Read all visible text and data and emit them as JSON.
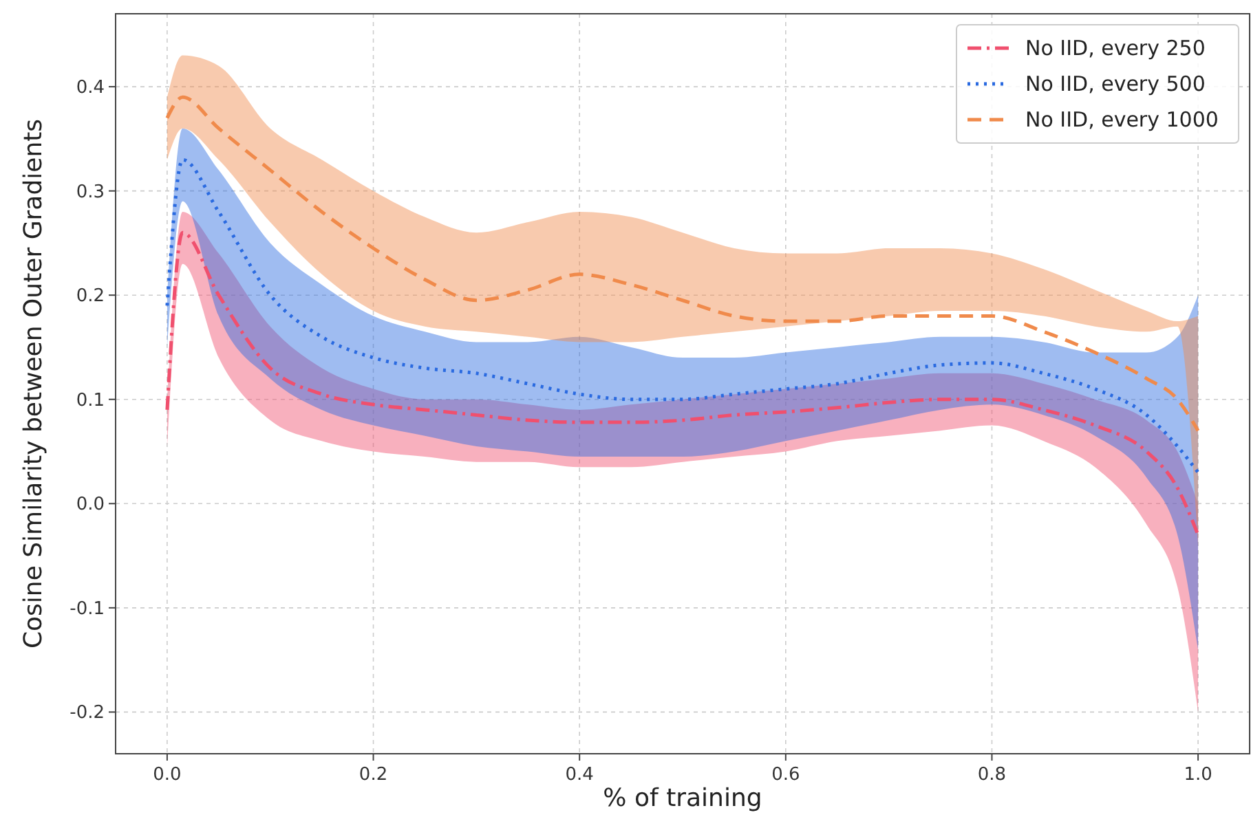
{
  "chart_data": {
    "type": "line",
    "xlabel": "% of training",
    "ylabel": "Cosine Similarity between Outer Gradients",
    "x": [
      0,
      0.015,
      0.05,
      0.1,
      0.15,
      0.2,
      0.25,
      0.3,
      0.35,
      0.4,
      0.45,
      0.5,
      0.55,
      0.6,
      0.65,
      0.7,
      0.75,
      0.8,
      0.85,
      0.9,
      0.95,
      0.98,
      1.0
    ],
    "xlim": [
      -0.05,
      1.05
    ],
    "xticks": [
      {
        "value": 0,
        "label": "0.0"
      },
      0.2,
      0.4,
      0.6,
      0.8,
      {
        "value": 1,
        "label": "1.0"
      }
    ],
    "ylim": [
      -0.24,
      0.47
    ],
    "yticks": [
      -0.2,
      -0.1,
      {
        "value": 0,
        "label": "0.0"
      },
      0.1,
      0.2,
      0.3,
      0.4
    ],
    "grid": true,
    "legend": "top right",
    "series": [
      {
        "name": "No IID, every 250",
        "color": "#f0506e",
        "line_style": "dashdot",
        "values": [
          0.09,
          0.26,
          0.2,
          0.13,
          0.105,
          0.095,
          0.09,
          0.085,
          0.08,
          0.078,
          0.078,
          0.08,
          0.085,
          0.088,
          0.092,
          0.097,
          0.1,
          0.1,
          0.09,
          0.075,
          0.05,
          0.015,
          -0.03
        ],
        "upper": [
          0.1,
          0.28,
          0.24,
          0.17,
          0.13,
          0.11,
          0.1,
          0.1,
          0.095,
          0.09,
          0.095,
          0.1,
          0.105,
          0.11,
          0.115,
          0.12,
          0.125,
          0.125,
          0.115,
          0.1,
          0.08,
          0.05,
          0.0
        ],
        "lower": [
          0.055,
          0.23,
          0.14,
          0.08,
          0.06,
          0.05,
          0.045,
          0.04,
          0.04,
          0.035,
          0.035,
          0.04,
          0.045,
          0.05,
          0.06,
          0.065,
          0.07,
          0.075,
          0.06,
          0.035,
          -0.02,
          -0.08,
          -0.2
        ]
      },
      {
        "name": "No IID, every 500",
        "color": "#2a6ae0",
        "line_style": "dotted",
        "values": [
          0.19,
          0.33,
          0.28,
          0.2,
          0.16,
          0.14,
          0.13,
          0.125,
          0.115,
          0.105,
          0.1,
          0.1,
          0.105,
          0.11,
          0.115,
          0.125,
          0.133,
          0.135,
          0.125,
          0.11,
          0.085,
          0.055,
          0.03
        ],
        "upper": [
          0.2,
          0.36,
          0.32,
          0.25,
          0.21,
          0.18,
          0.165,
          0.155,
          0.155,
          0.16,
          0.15,
          0.14,
          0.14,
          0.145,
          0.15,
          0.155,
          0.16,
          0.16,
          0.155,
          0.145,
          0.145,
          0.16,
          0.2
        ],
        "lower": [
          0.15,
          0.29,
          0.18,
          0.12,
          0.09,
          0.075,
          0.065,
          0.055,
          0.05,
          0.045,
          0.045,
          0.045,
          0.05,
          0.06,
          0.07,
          0.08,
          0.09,
          0.095,
          0.085,
          0.065,
          0.025,
          -0.03,
          -0.14
        ]
      },
      {
        "name": "No IID, every 1000",
        "color": "#f08a4b",
        "line_style": "dashed",
        "values": [
          0.37,
          0.39,
          0.36,
          0.32,
          0.28,
          0.245,
          0.215,
          0.195,
          0.205,
          0.22,
          0.21,
          0.195,
          0.18,
          0.175,
          0.175,
          0.18,
          0.18,
          0.18,
          0.165,
          0.145,
          0.12,
          0.1,
          0.07
        ],
        "upper": [
          0.39,
          0.43,
          0.42,
          0.36,
          0.33,
          0.3,
          0.275,
          0.26,
          0.27,
          0.28,
          0.275,
          0.26,
          0.245,
          0.24,
          0.24,
          0.245,
          0.245,
          0.24,
          0.225,
          0.205,
          0.185,
          0.175,
          0.18
        ],
        "lower": [
          0.33,
          0.36,
          0.33,
          0.27,
          0.22,
          0.185,
          0.17,
          0.165,
          0.16,
          0.155,
          0.155,
          0.16,
          0.165,
          0.17,
          0.175,
          0.18,
          0.185,
          0.185,
          0.18,
          0.17,
          0.165,
          0.17,
          -0.04
        ]
      }
    ]
  }
}
